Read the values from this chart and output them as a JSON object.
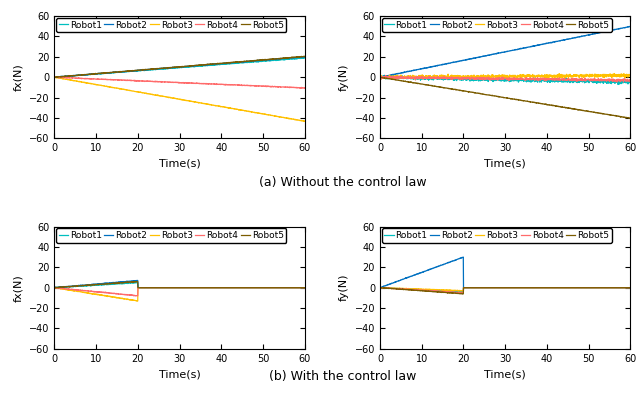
{
  "robot_colors": {
    "Robot1": "#00BFBF",
    "Robot2": "#0070C0",
    "Robot3": "#FFC000",
    "Robot4": "#FF6B6B",
    "Robot5": "#7B5C00"
  },
  "t_end": 60,
  "t_converge": 20,
  "ylim": [
    -60,
    60
  ],
  "yticks": [
    -60,
    -40,
    -20,
    0,
    20,
    40,
    60
  ],
  "xticks": [
    0,
    10,
    20,
    30,
    40,
    50,
    60
  ],
  "xlabel": "Time(s)",
  "ylabel_fx": "fx(N)",
  "ylabel_fy": "fy(N)",
  "caption_a": "(a) Without the control law",
  "caption_b": "(b) With the control law",
  "subplot_a_fx": {
    "Robot1": {
      "slope": 0.315,
      "noise": 0.15
    },
    "Robot2": {
      "slope": 0.335,
      "noise": 0.15
    },
    "Robot3": {
      "slope": -0.72,
      "noise": 0.12
    },
    "Robot4": {
      "slope": -0.175,
      "noise": 0.15
    },
    "Robot5": {
      "slope": 0.34,
      "noise": 0.15
    }
  },
  "subplot_a_fy": {
    "Robot1": {
      "slope": -0.08,
      "noise": 0.8
    },
    "Robot2": {
      "slope": 0.83,
      "noise": 0.12
    },
    "Robot3": {
      "slope": 0.03,
      "noise": 0.8
    },
    "Robot4": {
      "slope": -0.05,
      "noise": 0.6
    },
    "Robot5": {
      "slope": -0.67,
      "noise": 0.12
    }
  },
  "subplot_b_fx": {
    "Robot1": {
      "peak": 5,
      "noise": 0.15
    },
    "Robot2": {
      "peak": 7,
      "noise": 0.15
    },
    "Robot3": {
      "peak": -13,
      "noise": 0.15
    },
    "Robot4": {
      "peak": -8,
      "noise": 0.15
    },
    "Robot5": {
      "peak": 6,
      "noise": 0.15
    }
  },
  "subplot_b_fy": {
    "Robot1": {
      "peak": -4,
      "noise": 0.15
    },
    "Robot2": {
      "peak": 30,
      "noise": 0.12
    },
    "Robot3": {
      "peak": -3,
      "noise": 0.15
    },
    "Robot4": {
      "peak": -5,
      "noise": 0.15
    },
    "Robot5": {
      "peak": -6,
      "noise": 0.12
    }
  },
  "legend_fontsize": 6.5,
  "tick_fontsize": 7,
  "label_fontsize": 8,
  "caption_fontsize": 9
}
